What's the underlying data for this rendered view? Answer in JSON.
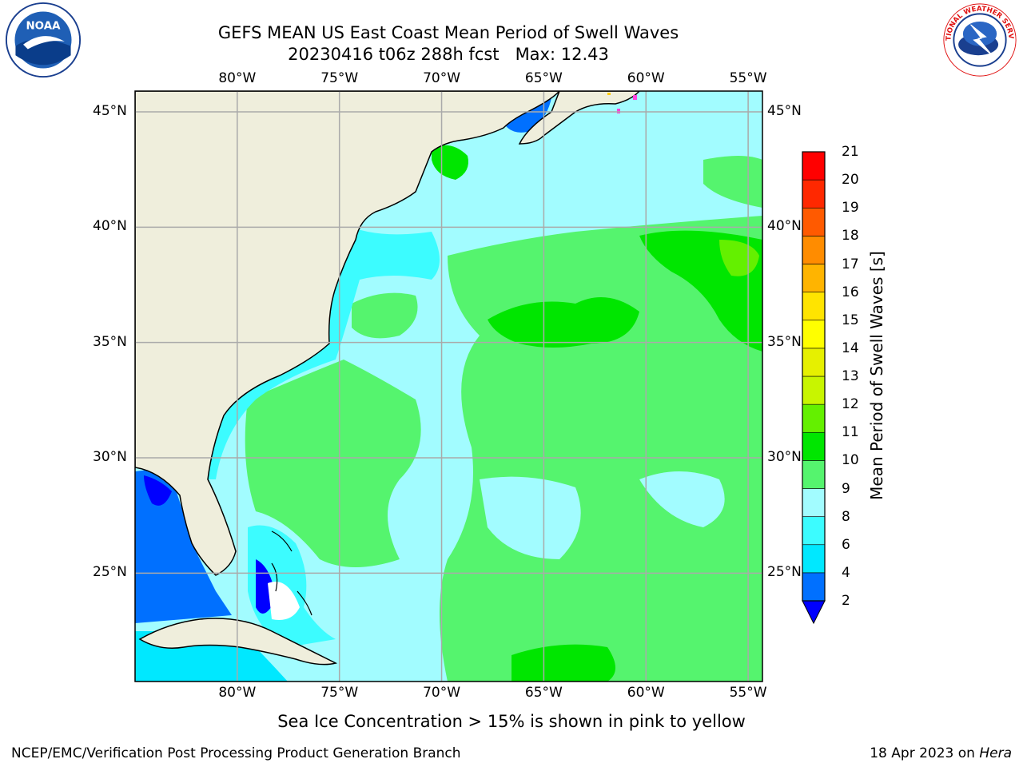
{
  "title_line1": "GEFS MEAN US East Coast Mean Period of Swell Waves",
  "title_line2": "20230416 t06z 288h fcst   Max: 12.43",
  "logos": {
    "left": {
      "icon": "noaa-logo",
      "text": "NOAA"
    },
    "right": {
      "icon": "nws-logo",
      "text": "NATIONAL WEATHER SERVICE"
    }
  },
  "map": {
    "lon_ticks": [
      "80°W",
      "75°W",
      "70°W",
      "65°W",
      "60°W",
      "55°W"
    ],
    "lat_ticks": [
      "45°N",
      "40°N",
      "35°N",
      "30°N",
      "25°N"
    ],
    "lon_range": [
      -85,
      -54.3
    ],
    "lat_range": [
      20.3,
      45.9
    ],
    "grid": true,
    "land_color": "#efeedc",
    "grid_color": "#aaaaaa"
  },
  "colorbar": {
    "title": "Mean Period of Swell Waves [s]",
    "labels": [
      "2",
      "4",
      "6",
      "8",
      "9",
      "10",
      "11",
      "12",
      "13",
      "14",
      "15",
      "16",
      "17",
      "18",
      "19",
      "20",
      "21"
    ],
    "colors": [
      "#0070ff",
      "#00e8ff",
      "#3cfcff",
      "#a2fcff",
      "#55f46e",
      "#00e600",
      "#64f000",
      "#c8f500",
      "#e6f000",
      "#ffff00",
      "#ffe400",
      "#ffb400",
      "#ff8c00",
      "#ff5a00",
      "#ff2800",
      "#ff0000"
    ],
    "under_color": "#0000ff"
  },
  "note": "Sea Ice Concentration > 15% is shown in pink to yellow",
  "footer_left": "NCEP/EMC/Verification Post Processing Product Generation Branch",
  "footer_right_prefix": "18 Apr 2023 on ",
  "footer_right_host": "Hera"
}
